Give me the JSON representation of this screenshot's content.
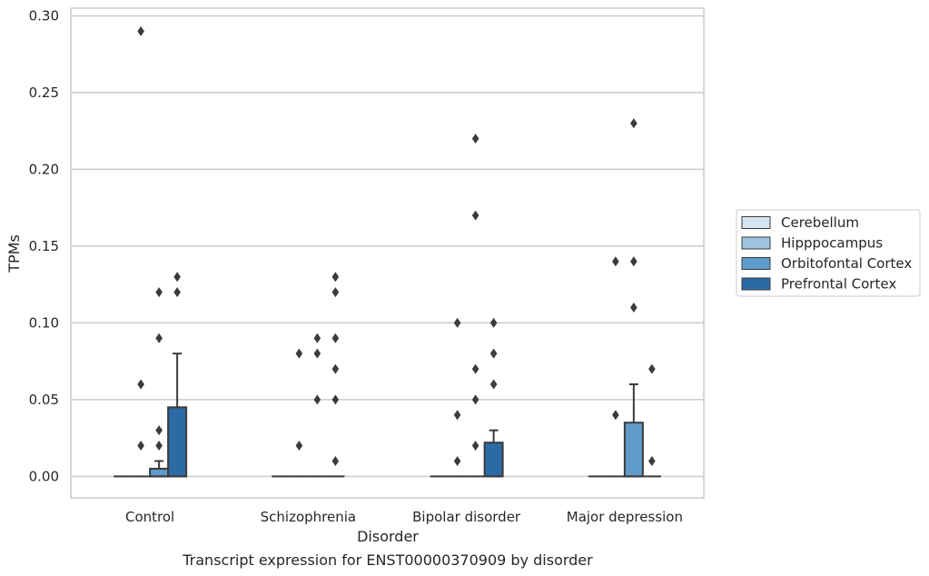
{
  "chart_data": {
    "type": "box",
    "title": "",
    "caption": "Transcript expression for ENST00000370909 by disorder",
    "xlabel": "Disorder",
    "ylabel": "TPMs",
    "ylim": [
      -0.014,
      0.305
    ],
    "yticks": [
      0.0,
      0.05,
      0.1,
      0.15,
      0.2,
      0.25,
      0.3
    ],
    "ytick_labels": [
      "0.00",
      "0.05",
      "0.10",
      "0.15",
      "0.20",
      "0.25",
      "0.30"
    ],
    "grid": "horizontal",
    "legend_position": "right",
    "categories": [
      "Control",
      "Schizophrenia",
      "Bipolar disorder",
      "Major depression"
    ],
    "series": [
      {
        "name": "Cerebellum",
        "color": "#d5e3f0",
        "boxes": [
          {
            "q1": 0,
            "median": 0,
            "q3": 0,
            "whisker_low": 0,
            "whisker_high": 0,
            "outliers": []
          },
          {
            "q1": 0,
            "median": 0,
            "q3": 0,
            "whisker_low": 0,
            "whisker_high": 0,
            "outliers": []
          },
          {
            "q1": 0,
            "median": 0,
            "q3": 0,
            "whisker_low": 0,
            "whisker_high": 0,
            "outliers": []
          },
          {
            "q1": 0,
            "median": 0,
            "q3": 0,
            "whisker_low": 0,
            "whisker_high": 0,
            "outliers": []
          }
        ]
      },
      {
        "name": "Hipppocampus",
        "color": "#9dc3de",
        "boxes": [
          {
            "q1": 0,
            "median": 0,
            "q3": 0,
            "whisker_low": 0,
            "whisker_high": 0,
            "outliers": [
              0.02,
              0.06,
              0.29
            ]
          },
          {
            "q1": 0,
            "median": 0,
            "q3": 0,
            "whisker_low": 0,
            "whisker_high": 0,
            "outliers": [
              0.02,
              0.08
            ]
          },
          {
            "q1": 0,
            "median": 0,
            "q3": 0,
            "whisker_low": 0,
            "whisker_high": 0,
            "outliers": [
              0.01,
              0.04,
              0.1
            ]
          },
          {
            "q1": 0,
            "median": 0,
            "q3": 0,
            "whisker_low": 0,
            "whisker_high": 0,
            "outliers": [
              0.04,
              0.14
            ]
          }
        ]
      },
      {
        "name": "Orbitofontal Cortex",
        "color": "#5f9ccb",
        "boxes": [
          {
            "q1": 0,
            "median": 0,
            "q3": 0.005,
            "whisker_low": 0,
            "whisker_high": 0.01,
            "outliers": [
              0.02,
              0.03,
              0.09,
              0.12
            ]
          },
          {
            "q1": 0,
            "median": 0,
            "q3": 0,
            "whisker_low": 0,
            "whisker_high": 0,
            "outliers": [
              0.05,
              0.08,
              0.09
            ]
          },
          {
            "q1": 0,
            "median": 0,
            "q3": 0,
            "whisker_low": 0,
            "whisker_high": 0,
            "outliers": [
              0.02,
              0.05,
              0.07,
              0.17,
              0.22
            ]
          },
          {
            "q1": 0,
            "median": 0,
            "q3": 0.035,
            "whisker_low": 0,
            "whisker_high": 0.06,
            "outliers": [
              0.11,
              0.14,
              0.23
            ]
          }
        ]
      },
      {
        "name": "Prefrontal Cortex",
        "color": "#2c6aa6",
        "boxes": [
          {
            "q1": 0,
            "median": 0,
            "q3": 0.045,
            "whisker_low": 0,
            "whisker_high": 0.08,
            "outliers": [
              0.12,
              0.13
            ]
          },
          {
            "q1": 0,
            "median": 0,
            "q3": 0,
            "whisker_low": 0,
            "whisker_high": 0,
            "outliers": [
              0.01,
              0.05,
              0.07,
              0.09,
              0.12,
              0.13
            ]
          },
          {
            "q1": 0,
            "median": 0,
            "q3": 0.022,
            "whisker_low": 0,
            "whisker_high": 0.03,
            "outliers": [
              0.06,
              0.08,
              0.1
            ]
          },
          {
            "q1": 0,
            "median": 0,
            "q3": 0,
            "whisker_low": 0,
            "whisker_high": 0,
            "outliers": [
              0.01,
              0.07
            ]
          }
        ]
      }
    ]
  }
}
